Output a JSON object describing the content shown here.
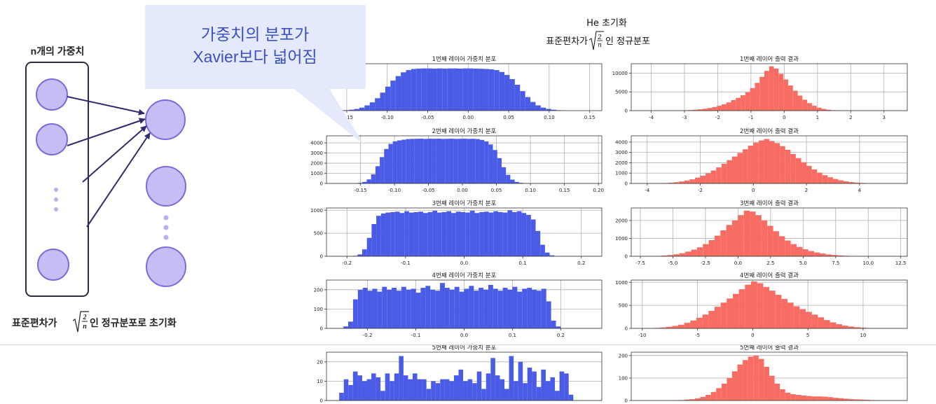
{
  "diagram": {
    "n_weights_label": "n개의 가중치",
    "bottom_text_prefix": "표준편차가",
    "bottom_text_suffix": "인 정규분포로 초기화",
    "sqrt_numerator": "2",
    "sqrt_denominator": "n"
  },
  "callout": {
    "line1": "가중치의 분포가",
    "line2": "Xavier보다 넓어짐"
  },
  "figure": {
    "title_line1": "He 초기화",
    "title_line2_prefix": "표준편차가",
    "title_line2_suffix": "인 정규분포",
    "sqrt_numerator": "2",
    "sqrt_denominator": "n"
  },
  "colors": {
    "weights": "#4a5be6",
    "outputs": "#f76d63",
    "neuron_fill": "#c7bdf5",
    "neuron_stroke": "#7b6ad9",
    "arrow": "#2e2a6e",
    "callout_fill": "#e4eafc"
  },
  "chart_data": [
    {
      "type": "bar",
      "title": "1번째 레이어 가중치 분포",
      "xlim": [
        -0.175,
        0.165
      ],
      "ylim": [
        0,
        1250
      ],
      "xticks": [
        -0.15,
        -0.1,
        -0.05,
        0.0,
        0.05,
        0.1,
        0.15
      ],
      "xtick_labels": [
        "-0.15",
        "-0.10",
        "-0.05",
        "0.00",
        "0.05",
        "0.10",
        "0.15"
      ],
      "yticks": [],
      "ytick_labels": [],
      "bin_start": -0.16,
      "bin_width": 0.0064,
      "values": [
        5,
        12,
        25,
        45,
        80,
        140,
        220,
        330,
        480,
        640,
        800,
        920,
        1020,
        1080,
        1110,
        1120,
        1125,
        1125,
        1120,
        1125,
        1120,
        1125,
        1125,
        1120,
        1125,
        1125,
        1120,
        1115,
        1110,
        1100,
        1080,
        1030,
        950,
        840,
        690,
        520,
        360,
        230,
        140,
        80,
        45,
        25,
        12,
        6
      ]
    },
    {
      "type": "bar",
      "title": "1번째 레이어 출력 결과",
      "xlim": [
        -4.6,
        3.7
      ],
      "ylim": [
        0,
        12500
      ],
      "xticks": [
        -4,
        -3,
        -2,
        -1,
        0,
        1,
        2,
        3
      ],
      "xtick_labels": [
        "-4",
        "-3",
        "-2",
        "-1",
        "0",
        "1",
        "2",
        "3"
      ],
      "yticks": [
        0,
        5000,
        10000
      ],
      "ytick_labels": [
        "0",
        "5000",
        "10000"
      ],
      "bin_start": -3.6,
      "bin_width": 0.143,
      "values": [
        10,
        20,
        40,
        60,
        100,
        150,
        240,
        360,
        500,
        700,
        950,
        1300,
        1700,
        2200,
        2800,
        3400,
        4100,
        4900,
        6000,
        7400,
        9000,
        10600,
        11800,
        11200,
        9800,
        8300,
        6700,
        5300,
        4000,
        2900,
        2000,
        1300,
        800,
        450,
        240,
        120,
        50,
        20,
        8
      ]
    },
    {
      "type": "bar",
      "title": "2번째 레이어 가중치 분포",
      "xlim": [
        -0.2,
        0.205
      ],
      "ylim": [
        0,
        4700
      ],
      "xticks": [
        -0.15,
        -0.1,
        -0.05,
        0.0,
        0.05,
        0.1,
        0.15,
        0.2
      ],
      "xtick_labels": [
        "-0.15",
        "-0.10",
        "-0.05",
        "0.00",
        "0.05",
        "0.10",
        "0.15",
        "0.20"
      ],
      "yticks": [
        0,
        1000,
        2000,
        3000,
        4000
      ],
      "ytick_labels": [
        "0",
        "1000",
        "2000",
        "3000",
        "4000"
      ],
      "bin_start": -0.16,
      "bin_width": 0.0064,
      "values": [
        20,
        60,
        150,
        400,
        900,
        1700,
        2600,
        3400,
        3900,
        4150,
        4250,
        4320,
        4380,
        4400,
        4410,
        4420,
        4400,
        4420,
        4410,
        4420,
        4400,
        4410,
        4420,
        4400,
        4410,
        4420,
        4400,
        4410,
        4380,
        4300,
        4150,
        3850,
        3300,
        2500,
        1600,
        850,
        380,
        150,
        60,
        20
      ]
    },
    {
      "type": "bar",
      "title": "2번째 레이어 출력 결과",
      "xlim": [
        -4.6,
        5.8
      ],
      "ylim": [
        0,
        4600
      ],
      "xticks": [
        -4,
        -2,
        0,
        2,
        4
      ],
      "xtick_labels": [
        "-4",
        "-2",
        "0",
        "2",
        "4"
      ],
      "yticks": [
        0,
        1000,
        2000,
        3000,
        4000
      ],
      "ytick_labels": [
        "0",
        "1000",
        "2000",
        "3000",
        "4000"
      ],
      "bin_start": -3.8,
      "bin_width": 0.2,
      "values": [
        10,
        20,
        40,
        70,
        120,
        190,
        280,
        400,
        560,
        750,
        980,
        1250,
        1550,
        1900,
        2250,
        2600,
        2950,
        3300,
        3650,
        3950,
        4150,
        4300,
        4100,
        3900,
        3600,
        3250,
        2850,
        2450,
        2050,
        1700,
        1350,
        1050,
        800,
        600,
        430,
        300,
        200,
        130,
        80,
        50,
        30,
        15,
        8
      ]
    },
    {
      "type": "bar",
      "title": "3번째 레이어 가중치 분포",
      "xlim": [
        -0.235,
        0.235
      ],
      "ylim": [
        0,
        1050
      ],
      "xticks": [
        -0.2,
        -0.1,
        0.0,
        0.1,
        0.2
      ],
      "xtick_labels": [
        "-0.2",
        "-0.1",
        "0.0",
        "0.1",
        "0.2"
      ],
      "yticks": [
        0,
        500,
        1000
      ],
      "ytick_labels": [
        "0",
        "500",
        "1000"
      ],
      "bin_start": -0.19,
      "bin_width": 0.008,
      "values": [
        10,
        40,
        150,
        400,
        700,
        880,
        930,
        950,
        960,
        970,
        940,
        980,
        950,
        960,
        970,
        940,
        960,
        990,
        950,
        960,
        980,
        940,
        970,
        960,
        950,
        990,
        940,
        960,
        970,
        950,
        980,
        960,
        950,
        1000,
        960,
        980,
        940,
        900,
        800,
        550,
        250,
        80,
        20
      ]
    },
    {
      "type": "bar",
      "title": "3번째 레이어 출력 결과",
      "xlim": [
        -8.2,
        13.0
      ],
      "ylim": [
        0,
        2700
      ],
      "xticks": [
        -7.5,
        -5.0,
        -2.5,
        0.0,
        2.5,
        5.0,
        7.5,
        10.0,
        12.5
      ],
      "xtick_labels": [
        "-7.5",
        "-5.0",
        "-2.5",
        "0.0",
        "2.5",
        "5.0",
        "7.5",
        "10.0",
        "12.5"
      ],
      "yticks": [
        0,
        1000,
        2000
      ],
      "ytick_labels": [
        "0",
        "1000",
        "2000"
      ],
      "bin_start": -7.2,
      "bin_width": 0.45,
      "values": [
        5,
        10,
        20,
        40,
        70,
        110,
        170,
        260,
        370,
        500,
        680,
        900,
        1150,
        1450,
        1750,
        2000,
        2300,
        2550,
        2500,
        2300,
        2000,
        1700,
        1400,
        1120,
        880,
        680,
        520,
        390,
        290,
        210,
        150,
        100,
        70,
        45,
        28,
        17,
        10,
        6,
        3
      ]
    },
    {
      "type": "bar",
      "title": "4번째 레이어 가중치 분포",
      "xlim": [
        -0.285,
        0.285
      ],
      "ylim": [
        0,
        250
      ],
      "xticks": [
        -0.2,
        -0.1,
        0.0,
        0.1,
        0.2
      ],
      "xtick_labels": [
        "-0.2",
        "-0.1",
        "0.0",
        "0.1",
        "0.2"
      ],
      "yticks": [
        0,
        100,
        200
      ],
      "ytick_labels": [
        "0",
        "100",
        "200"
      ],
      "bin_start": -0.25,
      "bin_width": 0.01,
      "values": [
        10,
        35,
        150,
        200,
        210,
        195,
        205,
        190,
        215,
        200,
        210,
        195,
        215,
        200,
        205,
        185,
        210,
        220,
        200,
        195,
        235,
        210,
        200,
        215,
        190,
        205,
        220,
        195,
        210,
        200,
        225,
        205,
        195,
        210,
        200,
        215,
        190,
        205,
        210,
        200,
        195,
        205,
        140,
        40,
        10
      ]
    },
    {
      "type": "bar",
      "title": "4번째 레이어 출력 결과",
      "xlim": [
        -11.0,
        14.0
      ],
      "ylim": [
        0,
        1050
      ],
      "xticks": [
        -10,
        -5,
        0,
        5,
        10
      ],
      "xtick_labels": [
        "-10",
        "-5",
        "0",
        "5",
        "10"
      ],
      "yticks": [
        0,
        500,
        1000
      ],
      "ytick_labels": [
        "0",
        "500",
        "1000"
      ],
      "bin_start": -9.5,
      "bin_width": 0.55,
      "values": [
        5,
        10,
        20,
        35,
        55,
        80,
        120,
        170,
        230,
        300,
        380,
        470,
        560,
        650,
        750,
        850,
        950,
        1020,
        980,
        900,
        820,
        730,
        640,
        560,
        480,
        420,
        360,
        300,
        240,
        180,
        130,
        90,
        60,
        40,
        25,
        15,
        8
      ]
    },
    {
      "type": "bar",
      "title": "5번째 레이어 가중치 분포",
      "xlim": [
        -0.27,
        0.27
      ],
      "ylim": [
        0,
        25
      ],
      "xticks": [],
      "xtick_labels": [],
      "yticks": [
        0,
        10,
        20
      ],
      "ytick_labels": [
        "0",
        "10",
        "20"
      ],
      "bin_start": -0.245,
      "bin_width": 0.009,
      "values": [
        4,
        11,
        8,
        15,
        13,
        10,
        11,
        14,
        12,
        5,
        14,
        10,
        14,
        23,
        13,
        11,
        14,
        11,
        11,
        6,
        10,
        9,
        11,
        11,
        10,
        13,
        16,
        10,
        11,
        9,
        15,
        6,
        14,
        22,
        13,
        11,
        6,
        23,
        10,
        20,
        9,
        17,
        15,
        7,
        16,
        10,
        12,
        5,
        15,
        14,
        3
      ]
    },
    {
      "type": "bar",
      "title": "5번째 레이어 출력 결과",
      "xlim": [
        -10.0,
        16.0
      ],
      "ylim": [
        0,
        215
      ],
      "xticks": [],
      "xtick_labels": [],
      "yticks": [
        0,
        100,
        200
      ],
      "ytick_labels": [
        "0",
        "100",
        "200"
      ],
      "bin_start": -6.0,
      "bin_width": 0.5,
      "values": [
        1,
        2,
        4,
        6,
        10,
        16,
        25,
        38,
        55,
        75,
        100,
        130,
        160,
        180,
        195,
        200,
        185,
        150,
        110,
        75,
        50,
        35,
        28,
        25,
        22,
        20,
        18,
        18,
        17,
        15,
        12,
        10,
        8,
        6,
        5,
        4,
        3,
        2,
        1
      ]
    }
  ]
}
